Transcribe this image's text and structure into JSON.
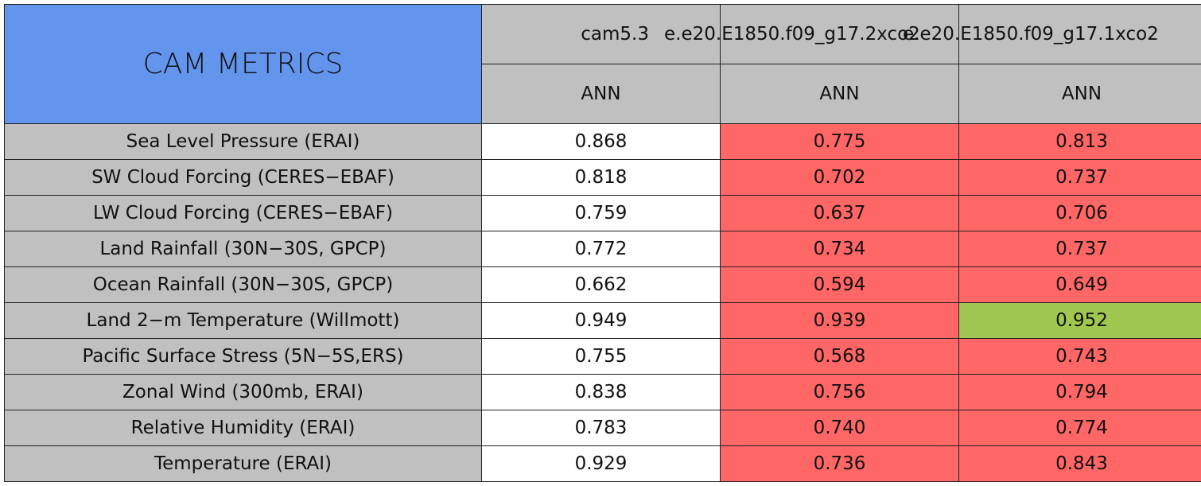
{
  "header": {
    "title": "CAM METRICS",
    "columns": [
      "cam5.3",
      "e.e20.E1850.f09_g17.2xco2",
      "e.e20.E1850.f09_g17.1xco2"
    ],
    "periods": [
      "ANN",
      "ANN",
      "ANN"
    ]
  },
  "colors": {
    "title": "#6495ed",
    "header": "#c0c0c0",
    "label": "#c0c0c0",
    "neutral": "#ffffff",
    "worse": "#ff6666",
    "better": "#a0c850"
  },
  "table": {
    "rows": [
      {
        "label": "Sea Level Pressure (ERAI)",
        "cells": [
          "0.868",
          "0.775",
          "0.813"
        ],
        "status": [
          "neutral",
          "worse",
          "worse"
        ]
      },
      {
        "label": "SW Cloud Forcing (CERES−EBAF)",
        "cells": [
          "0.818",
          "0.702",
          "0.737"
        ],
        "status": [
          "neutral",
          "worse",
          "worse"
        ]
      },
      {
        "label": "LW Cloud Forcing (CERES−EBAF)",
        "cells": [
          "0.759",
          "0.637",
          "0.706"
        ],
        "status": [
          "neutral",
          "worse",
          "worse"
        ]
      },
      {
        "label": "Land Rainfall (30N−30S, GPCP)",
        "cells": [
          "0.772",
          "0.734",
          "0.737"
        ],
        "status": [
          "neutral",
          "worse",
          "worse"
        ]
      },
      {
        "label": "Ocean Rainfall (30N−30S, GPCP)",
        "cells": [
          "0.662",
          "0.594",
          "0.649"
        ],
        "status": [
          "neutral",
          "worse",
          "worse"
        ]
      },
      {
        "label": "Land 2−m Temperature (Willmott)",
        "cells": [
          "0.949",
          "0.939",
          "0.952"
        ],
        "status": [
          "neutral",
          "worse",
          "better"
        ]
      },
      {
        "label": "Pacific Surface Stress (5N−5S,ERS)",
        "cells": [
          "0.755",
          "0.568",
          "0.743"
        ],
        "status": [
          "neutral",
          "worse",
          "worse"
        ]
      },
      {
        "label": "Zonal Wind (300mb, ERAI)",
        "cells": [
          "0.838",
          "0.756",
          "0.794"
        ],
        "status": [
          "neutral",
          "worse",
          "worse"
        ]
      },
      {
        "label": "Relative Humidity (ERAI)",
        "cells": [
          "0.783",
          "0.740",
          "0.774"
        ],
        "status": [
          "neutral",
          "worse",
          "worse"
        ]
      },
      {
        "label": "Temperature (ERAI)",
        "cells": [
          "0.929",
          "0.736",
          "0.843"
        ],
        "status": [
          "neutral",
          "worse",
          "worse"
        ]
      }
    ]
  }
}
